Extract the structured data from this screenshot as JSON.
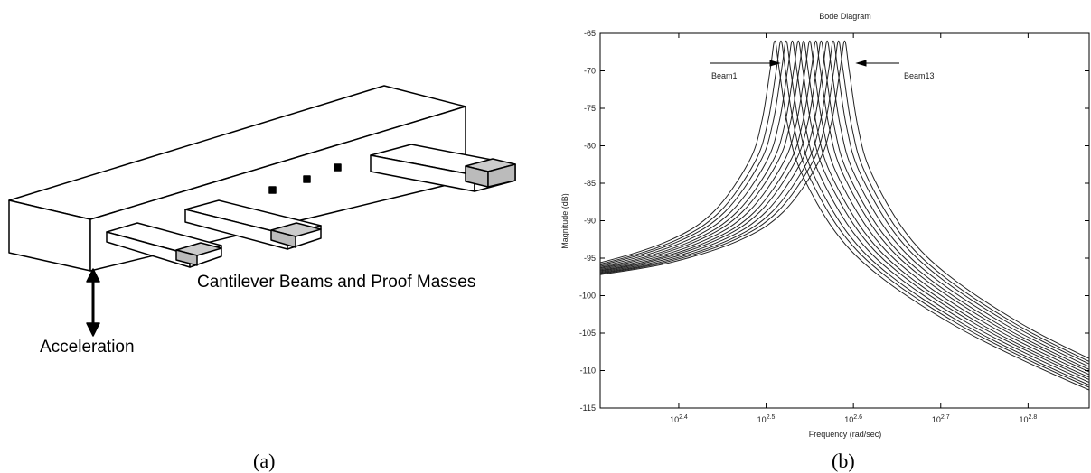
{
  "figure": {
    "caption_a": "(a)",
    "caption_b": "(b)"
  },
  "diagram": {
    "beams_label": "Cantilever Beams and Proof Masses",
    "acceleration_label": "Acceleration"
  },
  "chart_data": {
    "type": "line",
    "title": "Bode Diagram",
    "x_label": "Frequency  (rad/sec)",
    "y_label": "Magnitude (dB)",
    "xscale": "log10-exponent",
    "xlim": [
      2.31,
      2.87
    ],
    "ylim": [
      -115,
      -65
    ],
    "xticks": [
      {
        "value": 2.4,
        "label": "10^2.4"
      },
      {
        "value": 2.5,
        "label": "10^2.5"
      },
      {
        "value": 2.6,
        "label": "10^2.6"
      },
      {
        "value": 2.7,
        "label": "10^2.7"
      },
      {
        "value": 2.8,
        "label": "10^2.8"
      }
    ],
    "yticks": [
      -115,
      -110,
      -105,
      -100,
      -95,
      -90,
      -85,
      -80,
      -75,
      -70,
      -65
    ],
    "color": "#222222",
    "annotations": [
      {
        "text": "Beam1"
      },
      {
        "text": "Beam13"
      }
    ],
    "series": [
      {
        "x": [
          2.23,
          2.31,
          2.39,
          2.44,
          2.48,
          2.495,
          2.505,
          2.51,
          2.515,
          2.525,
          2.54,
          2.58,
          2.63,
          2.71,
          2.79,
          2.87
        ],
        "values": [
          -97.2,
          -95.6,
          -92.6,
          -88.8,
          -82.2,
          -76.8,
          -69.6,
          -66,
          -69.8,
          -77.4,
          -83.5,
          -91.6,
          -97.4,
          -103.6,
          -108.4,
          -112.6
        ]
      },
      {
        "x": [
          2.237,
          2.317,
          2.397,
          2.447,
          2.487,
          2.502,
          2.512,
          2.517,
          2.522,
          2.532,
          2.547,
          2.587,
          2.637,
          2.717,
          2.797,
          2.877
        ],
        "values": [
          -97.2,
          -95.6,
          -92.6,
          -88.8,
          -82.2,
          -76.8,
          -69.6,
          -66,
          -69.8,
          -77.4,
          -83.5,
          -91.6,
          -97.4,
          -103.6,
          -108.4,
          -112.6
        ]
      },
      {
        "x": [
          2.243,
          2.323,
          2.403,
          2.453,
          2.493,
          2.508,
          2.518,
          2.523,
          2.528,
          2.538,
          2.553,
          2.593,
          2.643,
          2.723,
          2.803,
          2.883
        ],
        "values": [
          -97.2,
          -95.6,
          -92.6,
          -88.8,
          -82.2,
          -76.8,
          -69.6,
          -66,
          -69.8,
          -77.4,
          -83.5,
          -91.6,
          -97.4,
          -103.6,
          -108.4,
          -112.6
        ]
      },
      {
        "x": [
          2.25,
          2.33,
          2.41,
          2.46,
          2.5,
          2.515,
          2.525,
          2.53,
          2.535,
          2.545,
          2.56,
          2.6,
          2.65,
          2.73,
          2.81,
          2.89
        ],
        "values": [
          -97.2,
          -95.6,
          -92.6,
          -88.8,
          -82.2,
          -76.8,
          -69.6,
          -66,
          -69.8,
          -77.4,
          -83.5,
          -91.6,
          -97.4,
          -103.6,
          -108.4,
          -112.6
        ]
      },
      {
        "x": [
          2.257,
          2.337,
          2.417,
          2.467,
          2.507,
          2.522,
          2.532,
          2.537,
          2.542,
          2.552,
          2.567,
          2.607,
          2.657,
          2.737,
          2.817,
          2.897
        ],
        "values": [
          -97.2,
          -95.6,
          -92.6,
          -88.8,
          -82.2,
          -76.8,
          -69.6,
          -66,
          -69.8,
          -77.4,
          -83.5,
          -91.6,
          -97.4,
          -103.6,
          -108.4,
          -112.6
        ]
      },
      {
        "x": [
          2.263,
          2.343,
          2.423,
          2.473,
          2.513,
          2.528,
          2.538,
          2.543,
          2.548,
          2.558,
          2.573,
          2.613,
          2.663,
          2.743,
          2.823,
          2.903
        ],
        "values": [
          -97.2,
          -95.6,
          -92.6,
          -88.8,
          -82.2,
          -76.8,
          -69.6,
          -66,
          -69.8,
          -77.4,
          -83.5,
          -91.6,
          -97.4,
          -103.6,
          -108.4,
          -112.6
        ]
      },
      {
        "x": [
          2.27,
          2.35,
          2.43,
          2.48,
          2.52,
          2.535,
          2.545,
          2.55,
          2.555,
          2.565,
          2.58,
          2.62,
          2.67,
          2.75,
          2.83,
          2.91
        ],
        "values": [
          -97.2,
          -95.6,
          -92.6,
          -88.8,
          -82.2,
          -76.8,
          -69.6,
          -66,
          -69.8,
          -77.4,
          -83.5,
          -91.6,
          -97.4,
          -103.6,
          -108.4,
          -112.6
        ]
      },
      {
        "x": [
          2.277,
          2.357,
          2.437,
          2.487,
          2.527,
          2.542,
          2.552,
          2.557,
          2.562,
          2.572,
          2.587,
          2.627,
          2.677,
          2.757,
          2.837,
          2.917
        ],
        "values": [
          -97.2,
          -95.6,
          -92.6,
          -88.8,
          -82.2,
          -76.8,
          -69.6,
          -66,
          -69.8,
          -77.4,
          -83.5,
          -91.6,
          -97.4,
          -103.6,
          -108.4,
          -112.6
        ]
      },
      {
        "x": [
          2.283,
          2.363,
          2.443,
          2.493,
          2.533,
          2.548,
          2.558,
          2.563,
          2.568,
          2.578,
          2.593,
          2.633,
          2.683,
          2.763,
          2.843,
          2.923
        ],
        "values": [
          -97.2,
          -95.6,
          -92.6,
          -88.8,
          -82.2,
          -76.8,
          -69.6,
          -66,
          -69.8,
          -77.4,
          -83.5,
          -91.6,
          -97.4,
          -103.6,
          -108.4,
          -112.6
        ]
      },
      {
        "x": [
          2.29,
          2.37,
          2.45,
          2.5,
          2.54,
          2.555,
          2.565,
          2.57,
          2.575,
          2.585,
          2.6,
          2.64,
          2.69,
          2.77,
          2.85,
          2.93
        ],
        "values": [
          -97.2,
          -95.6,
          -92.6,
          -88.8,
          -82.2,
          -76.8,
          -69.6,
          -66,
          -69.8,
          -77.4,
          -83.5,
          -91.6,
          -97.4,
          -103.6,
          -108.4,
          -112.6
        ]
      },
      {
        "x": [
          2.297,
          2.377,
          2.457,
          2.507,
          2.547,
          2.562,
          2.572,
          2.577,
          2.582,
          2.592,
          2.607,
          2.647,
          2.697,
          2.777,
          2.857,
          2.937
        ],
        "values": [
          -97.2,
          -95.6,
          -92.6,
          -88.8,
          -82.2,
          -76.8,
          -69.6,
          -66,
          -69.8,
          -77.4,
          -83.5,
          -91.6,
          -97.4,
          -103.6,
          -108.4,
          -112.6
        ]
      },
      {
        "x": [
          2.303,
          2.383,
          2.463,
          2.513,
          2.553,
          2.568,
          2.578,
          2.583,
          2.588,
          2.598,
          2.613,
          2.653,
          2.703,
          2.783,
          2.863,
          2.943
        ],
        "values": [
          -97.2,
          -95.6,
          -92.6,
          -88.8,
          -82.2,
          -76.8,
          -69.6,
          -66,
          -69.8,
          -77.4,
          -83.5,
          -91.6,
          -97.4,
          -103.6,
          -108.4,
          -112.6
        ]
      },
      {
        "x": [
          2.31,
          2.39,
          2.47,
          2.52,
          2.56,
          2.575,
          2.585,
          2.59,
          2.595,
          2.605,
          2.62,
          2.66,
          2.71,
          2.79,
          2.87,
          2.95
        ],
        "values": [
          -97.2,
          -95.6,
          -92.6,
          -88.8,
          -82.2,
          -76.8,
          -69.6,
          -66,
          -69.8,
          -77.4,
          -83.5,
          -91.6,
          -97.4,
          -103.6,
          -108.4,
          -112.6
        ]
      }
    ]
  }
}
